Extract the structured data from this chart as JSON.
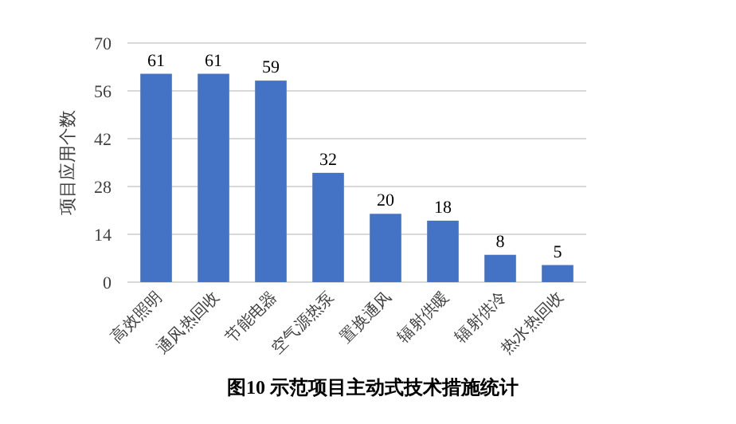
{
  "chart_data": {
    "type": "bar",
    "title": "图10 示范项目主动式技术措施统计",
    "ylabel": "项目应用个数",
    "categories": [
      "高效照明",
      "通风热回收",
      "节能电器",
      "空气源热泵",
      "置换通风",
      "辐射供暖",
      "辐射供冷",
      "热水热回收"
    ],
    "values": [
      61,
      61,
      59,
      32,
      20,
      18,
      8,
      5
    ],
    "color": "#4472c4",
    "ylim": [
      0,
      70
    ],
    "yticks": [
      0,
      14,
      28,
      42,
      56,
      70
    ],
    "grid": "y",
    "data_labels": true
  }
}
